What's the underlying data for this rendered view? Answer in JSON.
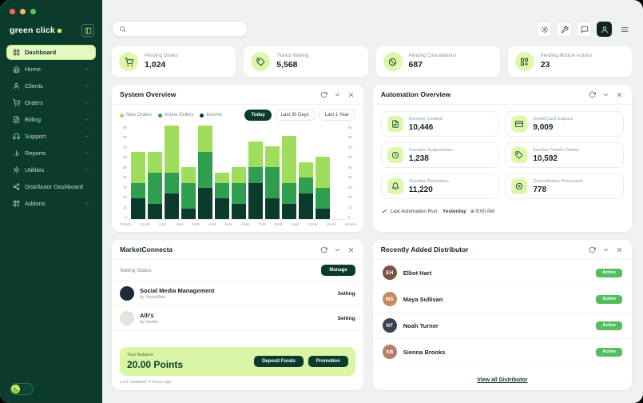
{
  "window": {
    "controls": [
      "close",
      "minimize",
      "zoom"
    ]
  },
  "brand": {
    "name": "green click"
  },
  "card_actions": [
    "refresh",
    "collapse",
    "close"
  ],
  "topbar": {
    "search_placeholder": "",
    "actions": [
      {
        "name": "settings",
        "icon": "gear",
        "dark": false
      },
      {
        "name": "tools",
        "icon": "wrench",
        "dark": false
      },
      {
        "name": "messages",
        "icon": "chat",
        "dark": false
      },
      {
        "name": "account",
        "icon": "user",
        "dark": true
      },
      {
        "name": "menu",
        "icon": "menu",
        "dark": false
      }
    ]
  },
  "sidebar": {
    "items": [
      {
        "label": "Dashboard",
        "icon": "dashboard",
        "active": true,
        "chevron": false
      },
      {
        "label": "Home",
        "icon": "home",
        "active": false,
        "chevron": true
      },
      {
        "label": "Clients",
        "icon": "clients",
        "active": false,
        "chevron": true
      },
      {
        "label": "Orders",
        "icon": "orders",
        "active": false,
        "chevron": true
      },
      {
        "label": "Billing",
        "icon": "billing",
        "active": false,
        "chevron": true
      },
      {
        "label": "Support",
        "icon": "support",
        "active": false,
        "chevron": true
      },
      {
        "label": "Reports",
        "icon": "reports",
        "active": false,
        "chevron": true
      },
      {
        "label": "Utilities",
        "icon": "utilities",
        "active": false,
        "chevron": true
      },
      {
        "label": "Distributor Dashboard",
        "icon": "distributor",
        "active": false,
        "chevron": false
      },
      {
        "label": "Addons",
        "icon": "addons",
        "active": false,
        "chevron": true
      }
    ]
  },
  "stats": [
    {
      "label": "Pending Orders",
      "value": "1,024",
      "icon": "orders"
    },
    {
      "label": "Tickets Waiting",
      "value": "5,568",
      "icon": "ticket"
    },
    {
      "label": "Pending Cancellations",
      "value": "687",
      "icon": "ban"
    },
    {
      "label": "Pending Module Actions",
      "value": "23",
      "icon": "addons"
    }
  ],
  "system_overview": {
    "title": "System Overview",
    "legend": [
      {
        "label": "New Orders",
        "color": "#9FDE5C"
      },
      {
        "label": "Active Orders",
        "color": "#2F9E4F"
      },
      {
        "label": "Income",
        "color": "#0B3B2C"
      }
    ],
    "filters": [
      {
        "label": "Today",
        "active": true
      },
      {
        "label": "Last 30 Days",
        "active": false
      },
      {
        "label": "Last 1 Year",
        "active": false
      }
    ]
  },
  "chart_data": {
    "type": "bar",
    "stacked": true,
    "title": "System Overview",
    "x": [
      "12AM",
      "1AM",
      "2AM",
      "3AM",
      "4AM",
      "5AM",
      "6AM",
      "7AM",
      "8AM",
      "9AM",
      "10AM",
      "11AM"
    ],
    "axis_end_labels": [
      "Orders",
      "Income"
    ],
    "series": [
      {
        "name": "New Orders",
        "color": "#9FDE5C",
        "values": [
          30,
          20,
          45,
          15,
          25,
          10,
          15,
          25,
          20,
          45,
          15,
          30
        ]
      },
      {
        "name": "Active Orders",
        "color": "#2F9E4F",
        "values": [
          15,
          30,
          20,
          25,
          35,
          15,
          20,
          15,
          30,
          20,
          15,
          20
        ]
      },
      {
        "name": "Income",
        "color": "#0B3B2C",
        "values": [
          20,
          15,
          25,
          10,
          30,
          20,
          15,
          35,
          20,
          15,
          25,
          10
        ]
      }
    ],
    "ylim": [
      0,
      90
    ],
    "yticks": [
      0,
      10,
      20,
      30,
      40,
      50,
      60,
      70,
      80,
      90
    ],
    "grid": false,
    "legend_position": "top-left"
  },
  "automation": {
    "title": "Automation Overview",
    "tiles": [
      {
        "label": "Invoices Created",
        "value": "10,446",
        "icon": "billing"
      },
      {
        "label": "Credit Card Capture",
        "value": "9,009",
        "icon": "card"
      },
      {
        "label": "Overdue Suspensions",
        "value": "1,238",
        "icon": "clock"
      },
      {
        "label": "Inactive Tickets Closed",
        "value": "10,592",
        "icon": "ticket"
      },
      {
        "label": "Overdue Reminders",
        "value": "11,220",
        "icon": "bell"
      },
      {
        "label": "Cancellations Processed",
        "value": "778",
        "icon": "cancel"
      }
    ],
    "footer": {
      "prefix": "Last Automation Run:",
      "emphasis": "Yesterday",
      "suffix": "at 9:00 AM"
    }
  },
  "marketconnecta": {
    "title": "MarketConnecta",
    "selling_status_label": "Selling Status",
    "manage_label": "Manage",
    "items": [
      {
        "name": "Social Media Management",
        "by": "by SocialBee",
        "status": "Selling",
        "avatar_color": "#1E2A38"
      },
      {
        "name": "Alli's",
        "by": "by Herbly",
        "status": "Selling",
        "avatar_color": "#E9E2D8"
      }
    ],
    "balance": {
      "label": "Your Balance",
      "value": "20.00 Points",
      "buttons": [
        "Deposit Funds",
        "Promotion"
      ]
    },
    "last_updated": "Last Updated: 4 hours ago"
  },
  "distributors": {
    "title": "Recently Added Distributor",
    "rows": [
      {
        "name": "Elliot Hart",
        "status": "Active",
        "avatar_color": "#7A5643"
      },
      {
        "name": "Maya Sullivan",
        "status": "Active",
        "avatar_color": "#C98A5E"
      },
      {
        "name": "Noah Turner",
        "status": "Active",
        "avatar_color": "#39424E"
      },
      {
        "name": "Sienna Brooks",
        "status": "Active",
        "avatar_color": "#B57F62"
      }
    ],
    "link": "View all Distributor"
  },
  "colors": {
    "sidebar_bg": "#0B3B2C",
    "accent_lime": "#C8F25A",
    "accent_pale": "#DFF7AC",
    "badge_green": "#55BC60",
    "content_bg": "#EFF1F2"
  }
}
